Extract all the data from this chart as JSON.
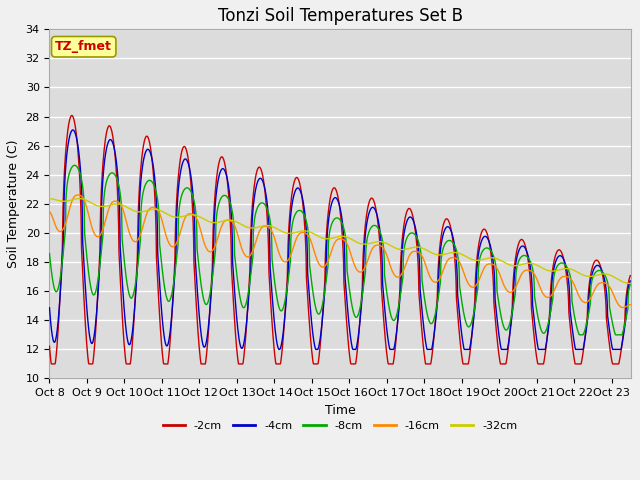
{
  "title": "Tonzi Soil Temperatures Set B",
  "xlabel": "Time",
  "ylabel": "Soil Temperature (C)",
  "ylim": [
    10,
    34
  ],
  "yticks": [
    10,
    12,
    14,
    16,
    18,
    20,
    22,
    24,
    26,
    28,
    30,
    32,
    34
  ],
  "xlim_days": [
    0,
    15.5
  ],
  "xtick_labels": [
    "Oct 8",
    "Oct 9",
    "Oct 10",
    "Oct 11",
    "Oct 12",
    "Oct 13",
    "Oct 14",
    "Oct 15",
    "Oct 16",
    "Oct 17",
    "Oct 18",
    "Oct 19",
    "Oct 20",
    "Oct 21",
    "Oct 22",
    "Oct 23"
  ],
  "series_colors": {
    "-2cm": "#cc0000",
    "-4cm": "#0000cc",
    "-8cm": "#00aa00",
    "-16cm": "#ff8800",
    "-32cm": "#cccc00"
  },
  "legend_label": "TZ_fmet",
  "legend_box_color": "#ffff99",
  "legend_box_edge": "#999900",
  "plot_bg_color": "#dcdcdc",
  "grid_color": "#ffffff",
  "title_fontsize": 12,
  "axis_fontsize": 9,
  "tick_fontsize": 8
}
